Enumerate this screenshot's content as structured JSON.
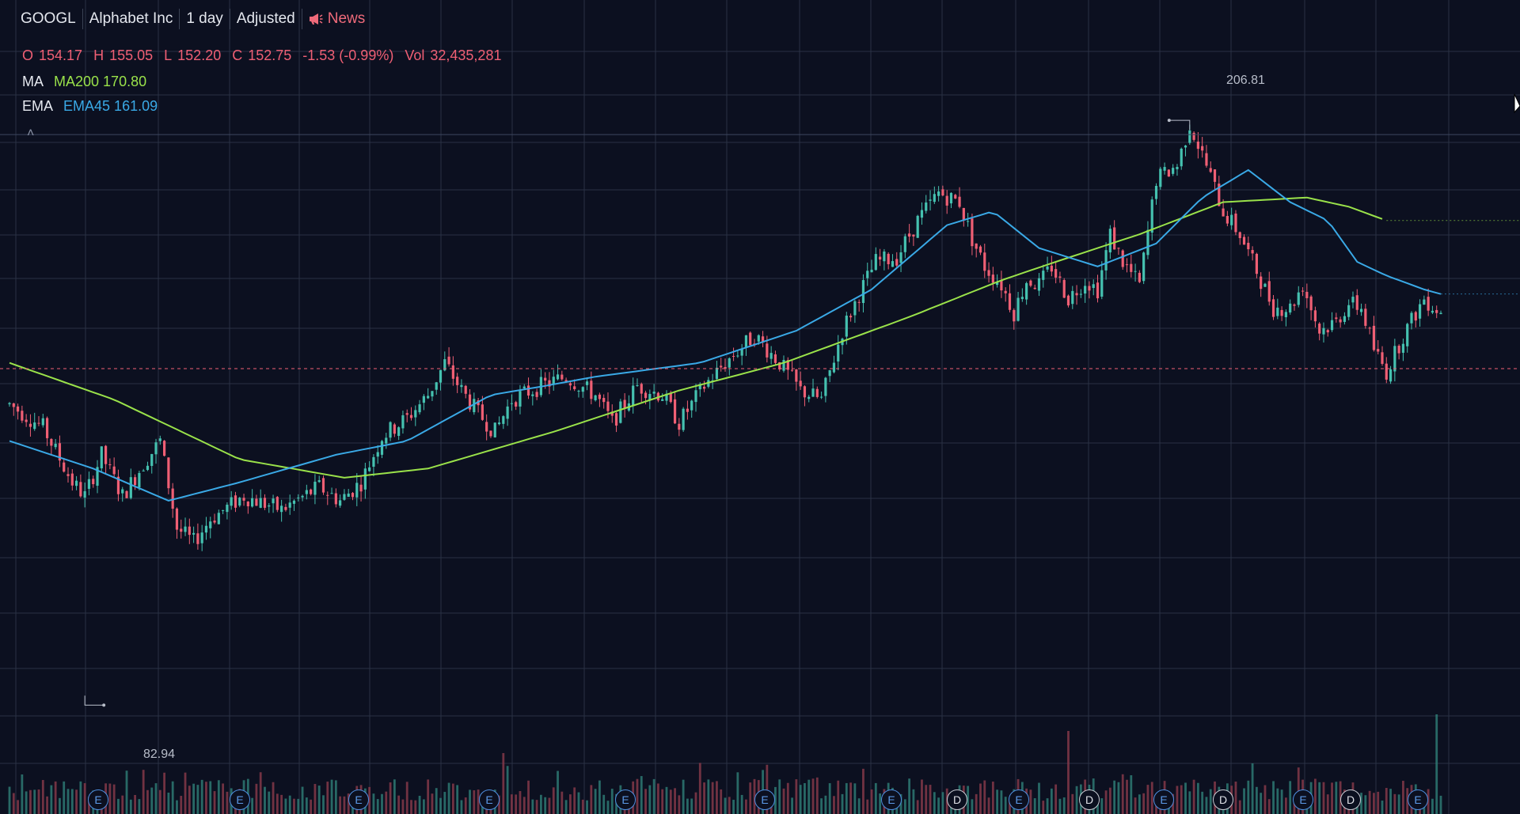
{
  "toolbar": {
    "symbol": "GOOGL",
    "company": "Alphabet Inc",
    "interval": "1 day",
    "adjustment": "Adjusted",
    "news_label": "News",
    "news_icon": "megaphone-icon"
  },
  "ohlc": {
    "o_label": "O",
    "o": "154.17",
    "h_label": "H",
    "h": "155.05",
    "l_label": "L",
    "l": "152.20",
    "c_label": "C",
    "c": "152.75",
    "change": "-1.53 (-0.99%)",
    "vol_label": "Vol",
    "vol": "32,435,281"
  },
  "indicators": {
    "ma": {
      "label": "MA",
      "value": "MA200 170.80",
      "color": "#9ae24a"
    },
    "ema": {
      "label": "EMA",
      "value": "EMA45 161.09",
      "color": "#3aa9e6"
    }
  },
  "collapse_glyph": "˄",
  "annotations": {
    "high": "206.81",
    "low": "82.94"
  },
  "colors": {
    "background": "#0c1020",
    "grid": "#2a3144",
    "up": "#45c1b0",
    "down": "#ef5f74",
    "last_price_line": "#ef5f74"
  },
  "event_markers": [
    "E",
    "E",
    "E",
    "E",
    "E",
    "E",
    "E",
    "D",
    "E",
    "D",
    "E",
    "D",
    "E",
    "D",
    "E"
  ],
  "chart_data": {
    "type": "candlestick",
    "symbol": "GOOGL",
    "interval": "1 day",
    "y_range": [
      78,
      212
    ],
    "trend_points": [
      [
        0,
        145
      ],
      [
        8,
        140
      ],
      [
        15,
        128
      ],
      [
        18,
        125
      ],
      [
        22,
        134
      ],
      [
        27,
        125
      ],
      [
        32,
        132
      ],
      [
        36,
        137
      ],
      [
        40,
        118
      ],
      [
        44,
        115
      ],
      [
        48,
        120
      ],
      [
        56,
        125
      ],
      [
        65,
        122
      ],
      [
        74,
        127
      ],
      [
        79,
        124
      ],
      [
        84,
        128
      ],
      [
        89,
        138
      ],
      [
        95,
        142
      ],
      [
        100,
        147
      ],
      [
        104,
        154
      ],
      [
        108,
        148
      ],
      [
        112,
        143
      ],
      [
        116,
        139
      ],
      [
        120,
        146
      ],
      [
        127,
        149
      ],
      [
        133,
        151
      ],
      [
        140,
        147
      ],
      [
        144,
        141
      ],
      [
        150,
        149
      ],
      [
        156,
        147
      ],
      [
        160,
        141
      ],
      [
        166,
        149
      ],
      [
        171,
        154
      ],
      [
        178,
        160
      ],
      [
        184,
        154
      ],
      [
        189,
        148
      ],
      [
        194,
        146
      ],
      [
        199,
        161
      ],
      [
        203,
        169
      ],
      [
        207,
        176
      ],
      [
        212,
        177
      ],
      [
        217,
        185
      ],
      [
        222,
        191
      ],
      [
        227,
        189
      ],
      [
        230,
        181
      ],
      [
        233,
        175
      ],
      [
        237,
        171
      ],
      [
        240,
        165
      ],
      [
        243,
        172
      ],
      [
        246,
        171
      ],
      [
        249,
        175
      ],
      [
        253,
        168
      ],
      [
        257,
        172
      ],
      [
        260,
        170
      ],
      [
        263,
        182
      ],
      [
        266,
        176
      ],
      [
        270,
        171
      ],
      [
        274,
        194
      ],
      [
        279,
        197
      ],
      [
        282,
        206
      ],
      [
        286,
        197
      ],
      [
        290,
        187
      ],
      [
        294,
        182
      ],
      [
        298,
        174
      ],
      [
        302,
        166
      ],
      [
        306,
        166
      ],
      [
        309,
        171
      ],
      [
        313,
        161
      ],
      [
        317,
        163
      ],
      [
        320,
        167
      ],
      [
        323,
        166
      ],
      [
        326,
        157
      ],
      [
        329,
        152
      ],
      [
        333,
        160
      ],
      [
        338,
        168
      ],
      [
        342,
        165
      ]
    ],
    "volume_spikes": [
      [
        118,
        0.55
      ],
      [
        253,
        0.75
      ],
      [
        268,
        0.35
      ],
      [
        308,
        0.42
      ],
      [
        341,
        0.9
      ]
    ],
    "ma200": [
      [
        0,
        154
      ],
      [
        25,
        146
      ],
      [
        55,
        133
      ],
      [
        80,
        129
      ],
      [
        100,
        131
      ],
      [
        130,
        139
      ],
      [
        160,
        148
      ],
      [
        185,
        154
      ],
      [
        215,
        164
      ],
      [
        237,
        172
      ],
      [
        250,
        176
      ],
      [
        270,
        182
      ],
      [
        290,
        189
      ],
      [
        310,
        190
      ],
      [
        320,
        188
      ],
      [
        329,
        185
      ]
    ],
    "ema45": [
      [
        0,
        137
      ],
      [
        20,
        131
      ],
      [
        38,
        124
      ],
      [
        55,
        128
      ],
      [
        78,
        134
      ],
      [
        95,
        137
      ],
      [
        115,
        147
      ],
      [
        128,
        149
      ],
      [
        140,
        151
      ],
      [
        165,
        154
      ],
      [
        188,
        161
      ],
      [
        206,
        170
      ],
      [
        224,
        184
      ],
      [
        235,
        187
      ],
      [
        246,
        179
      ],
      [
        260,
        175
      ],
      [
        274,
        180
      ],
      [
        285,
        190
      ],
      [
        296,
        196
      ],
      [
        306,
        189
      ],
      [
        315,
        185
      ],
      [
        322,
        176
      ],
      [
        329,
        173
      ],
      [
        338,
        170
      ],
      [
        342,
        169
      ]
    ],
    "last_close": 152.75,
    "period_high": 206.81,
    "period_low": 82.94,
    "series": [
      {
        "name": "MA200",
        "value": 170.8
      },
      {
        "name": "EMA45",
        "value": 161.09
      }
    ]
  }
}
